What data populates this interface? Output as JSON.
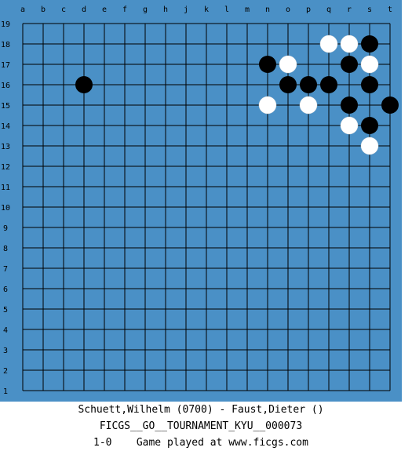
{
  "board": {
    "size": 19,
    "colors": {
      "background": "#4a90c6",
      "grid": "#000000",
      "coord_text": "#000000",
      "black_stone": "#000000",
      "white_stone": "#ffffff"
    },
    "columns": [
      "a",
      "b",
      "c",
      "d",
      "e",
      "f",
      "g",
      "h",
      "j",
      "k",
      "l",
      "m",
      "n",
      "o",
      "p",
      "q",
      "r",
      "s",
      "t"
    ],
    "rows": [
      "19",
      "18",
      "17",
      "16",
      "15",
      "14",
      "13",
      "12",
      "11",
      "10",
      "9",
      "8",
      "7",
      "6",
      "5",
      "4",
      "3",
      "2",
      "1"
    ],
    "stones": {
      "black": [
        "d16",
        "n17",
        "o16",
        "p16",
        "q16",
        "r17",
        "r15",
        "s18",
        "s16",
        "s14",
        "t15"
      ],
      "white": [
        "q18",
        "r18",
        "o17",
        "s17",
        "n15",
        "p15",
        "r14",
        "s13"
      ]
    }
  },
  "caption": {
    "players": "Schuett,Wilhelm (0700) - Faust,Dieter ()",
    "event": "FICGS__GO__TOURNAMENT_KYU__000073",
    "result_line": "1-0    Game played at www.ficgs.com"
  }
}
